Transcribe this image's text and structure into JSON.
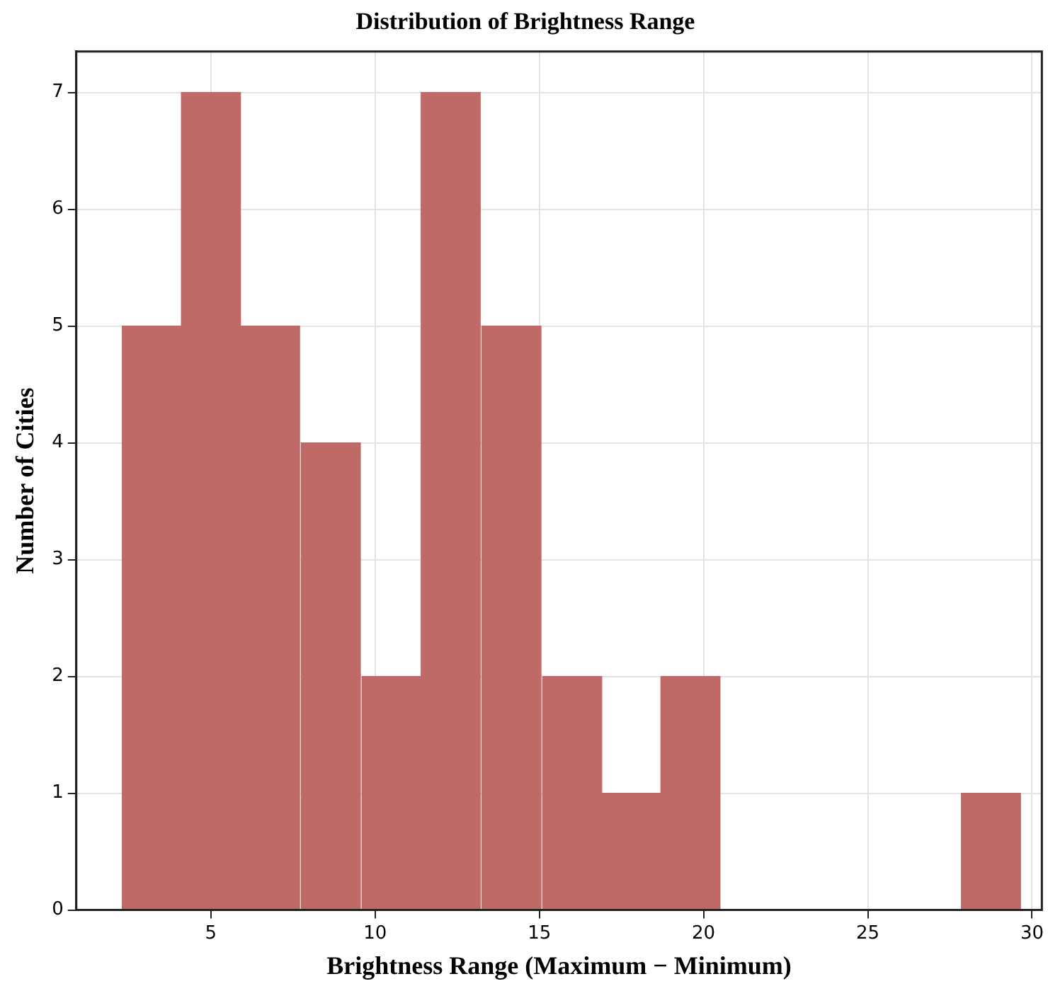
{
  "chart_data": {
    "type": "histogram",
    "title": "Distribution of Brightness Range",
    "xlabel": "Brightness Range (Maximum − Minimum)",
    "ylabel": "Number of Cities",
    "bins": [
      2.3,
      4.1,
      5.9,
      7.7,
      9.6,
      11.4,
      13.2,
      15.1,
      16.9,
      18.7,
      20.5,
      22.4,
      24.2,
      26.0,
      27.8,
      29.7
    ],
    "values": [
      5,
      7,
      5,
      4,
      2,
      7,
      5,
      2,
      1,
      2,
      0,
      0,
      0,
      0,
      1
    ],
    "color": "#c06a68",
    "xlim": [
      0.9,
      30.3
    ],
    "xticks": [
      5,
      10,
      15,
      20,
      25,
      30
    ],
    "ylim": [
      0,
      7.35
    ],
    "yticks": [
      0,
      1,
      2,
      3,
      4,
      5,
      6,
      7
    ],
    "grid": true
  }
}
